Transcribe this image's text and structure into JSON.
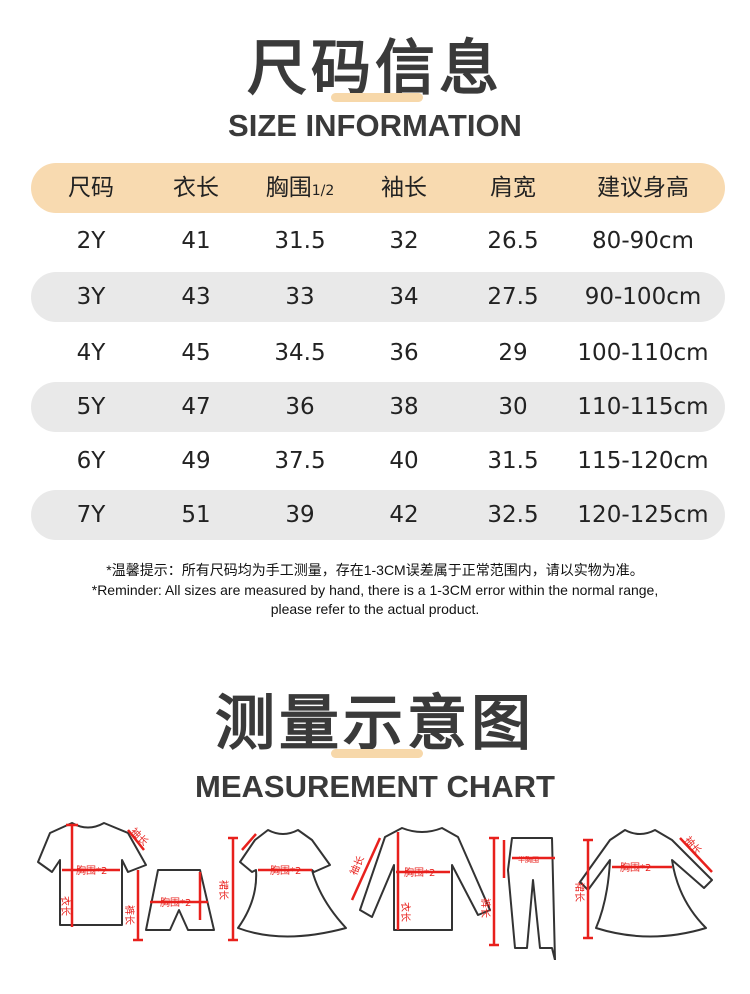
{
  "size_section": {
    "title_cn": "尺码信息",
    "title_en": "SIZE INFORMATION",
    "table": {
      "headers": [
        "尺码",
        "衣长",
        "胸围",
        "袖长",
        "肩宽",
        "建议身高"
      ],
      "chest_suffix": "1/2",
      "rows": [
        [
          "2Y",
          "41",
          "31.5",
          "32",
          "26.5",
          "80-90cm"
        ],
        [
          "3Y",
          "43",
          "33",
          "34",
          "27.5",
          "90-100cm"
        ],
        [
          "4Y",
          "45",
          "34.5",
          "36",
          "29",
          "100-110cm"
        ],
        [
          "5Y",
          "47",
          "36",
          "38",
          "30",
          "110-115cm"
        ],
        [
          "6Y",
          "49",
          "37.5",
          "40",
          "31.5",
          "115-120cm"
        ],
        [
          "7Y",
          "51",
          "39",
          "42",
          "32.5",
          "120-125cm"
        ]
      ]
    },
    "note_cn": "*温馨提示：所有尺码均为手工测量，存在1-3CM误差属于正常范围内，请以实物为准。",
    "note_en_line1": "*Reminder: All sizes are measured by hand, there is a 1-3CM error within the normal range,",
    "note_en_line2": "please refer to the actual product."
  },
  "measurement_section": {
    "title_cn": "测量示意图",
    "title_en": "MEASUREMENT CHART",
    "diagram_labels": {
      "chest": "胸围*2",
      "half_chest": "半胸围",
      "length": "衣长",
      "sleeve": "袖长",
      "pants_length": "裤长",
      "rise": "档长",
      "dress_length": "裙长"
    }
  },
  "colors": {
    "accent": "#f8dab0",
    "row_gray": "#e9e9e9",
    "measure_red": "#e8201c",
    "title": "#3a3a3a"
  }
}
